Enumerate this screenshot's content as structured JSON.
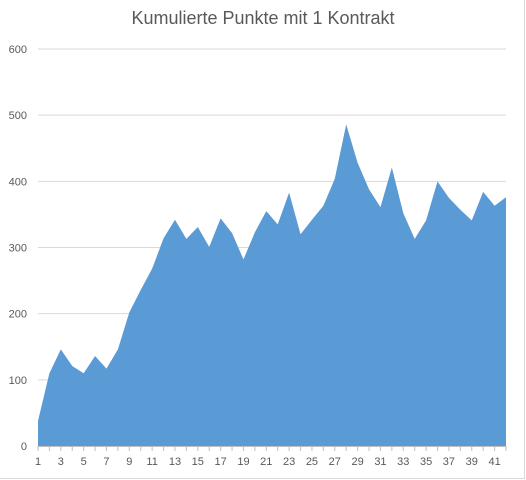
{
  "chart_data": {
    "type": "area",
    "title": "Kumulierte Punkte mit 1 Kontrakt",
    "xlabel": "",
    "ylabel": "",
    "x": [
      1,
      2,
      3,
      4,
      5,
      6,
      7,
      8,
      9,
      10,
      11,
      12,
      13,
      14,
      15,
      16,
      17,
      18,
      19,
      20,
      21,
      22,
      23,
      24,
      25,
      26,
      27,
      28,
      29,
      30,
      31,
      32,
      33,
      34,
      35,
      36,
      37,
      38,
      39,
      40,
      41,
      42
    ],
    "x_tick_labels": [
      "1",
      "3",
      "5",
      "7",
      "9",
      "11",
      "13",
      "15",
      "17",
      "19",
      "21",
      "23",
      "25",
      "27",
      "29",
      "31",
      "33",
      "35",
      "37",
      "39",
      "41"
    ],
    "y_tick_labels": [
      "0",
      "100",
      "200",
      "300",
      "400",
      "500",
      "600"
    ],
    "series": [
      {
        "values": [
          38,
          110,
          146,
          121,
          110,
          136,
          117,
          146,
          202,
          236,
          268,
          314,
          342,
          313,
          331,
          301,
          344,
          322,
          282,
          323,
          355,
          335,
          383,
          320,
          342,
          363,
          404,
          486,
          428,
          388,
          361,
          421,
          352,
          313,
          341,
          400,
          375,
          357,
          341,
          384,
          363,
          376
        ],
        "color": "#5b9bd5"
      }
    ],
    "ylim": [
      0,
      600
    ],
    "grid": true,
    "legend": "none",
    "gridline_color": "#d9d9d9",
    "axis_color": "#bfbfbf"
  }
}
